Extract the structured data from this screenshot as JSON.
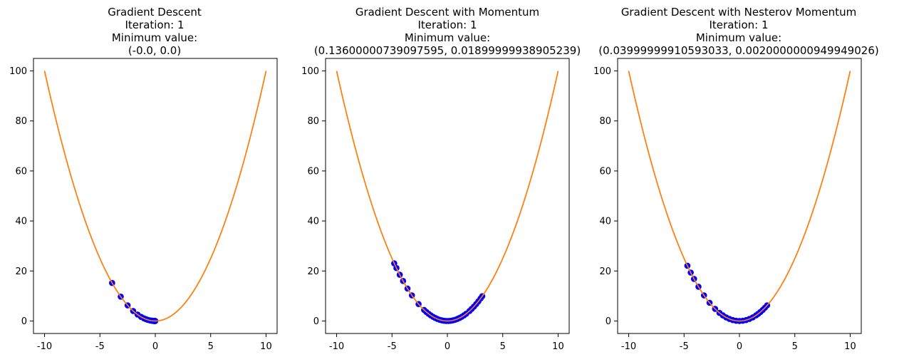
{
  "chart_data": [
    {
      "type": "line+scatter",
      "title_lines": [
        "Gradient Descent",
        "Iteration: 1",
        "Minimum value:",
        "(-0.0, 0.0)"
      ],
      "xlim": [
        -11,
        11
      ],
      "ylim": [
        -5,
        105
      ],
      "xticks": [
        "-10",
        "-5",
        "0",
        "5",
        "10"
      ],
      "yticks": [
        "0",
        "20",
        "40",
        "60",
        "80",
        "100"
      ],
      "curve": {
        "function": "y = x^2",
        "x_range": [
          -10,
          10
        ],
        "color": "#ff7f0e"
      },
      "points": {
        "color": "#0000ff",
        "x": [
          -3.9,
          -3.12,
          -2.5,
          -2.0,
          -1.6,
          -1.28,
          -1.02,
          -0.82,
          -0.66,
          -0.52,
          -0.42,
          -0.34,
          -0.27,
          -0.21,
          -0.17,
          -0.13,
          -0.1,
          -0.08,
          -0.06,
          -0.04,
          -0.02,
          0.0
        ]
      }
    },
    {
      "type": "line+scatter",
      "title_lines": [
        "Gradient Descent with Momentum",
        "Iteration: 1",
        "Minimum value:",
        "(0.13600000739097595, 0.01899999938905239)"
      ],
      "xlim": [
        -11,
        11
      ],
      "ylim": [
        -5,
        105
      ],
      "xticks": [
        "-10",
        "-5",
        "0",
        "5",
        "10"
      ],
      "yticks": [
        "0",
        "20",
        "40",
        "60",
        "80",
        "100"
      ],
      "curve": {
        "function": "y = x^2",
        "x_range": [
          -10,
          10
        ],
        "color": "#ff7f0e"
      },
      "points": {
        "color": "#0000ff",
        "x": [
          -4.8,
          -4.6,
          -4.3,
          -4.0,
          -3.6,
          -3.2,
          -2.6,
          -2.1,
          -1.9,
          -1.7,
          -1.5,
          -1.3,
          -1.1,
          -0.9,
          -0.7,
          -0.5,
          -0.3,
          -0.1,
          0.1,
          0.3,
          0.5,
          0.7,
          0.9,
          1.1,
          1.3,
          1.5,
          1.7,
          2.0,
          2.2,
          2.4,
          2.6,
          2.8,
          3.0,
          3.15
        ]
      }
    },
    {
      "type": "line+scatter",
      "title_lines": [
        "Gradient Descent with Nesterov Momentum",
        "Iteration: 1",
        "Minimum value:",
        "(0.03999999910593033, 0.0020000000949949026)"
      ],
      "xlim": [
        -11,
        11
      ],
      "ylim": [
        -5,
        105
      ],
      "xticks": [
        "-10",
        "-5",
        "0",
        "5",
        "10"
      ],
      "yticks": [
        "0",
        "20",
        "40",
        "60",
        "80",
        "100"
      ],
      "curve": {
        "function": "y = x^2",
        "x_range": [
          -10,
          10
        ],
        "color": "#ff7f0e"
      },
      "points": {
        "color": "#0000ff",
        "x": [
          -4.7,
          -4.4,
          -4.1,
          -3.7,
          -3.2,
          -2.7,
          -2.2,
          -1.8,
          -1.5,
          -1.2,
          -0.9,
          -0.6,
          -0.3,
          0.0,
          0.3,
          0.6,
          0.9,
          1.2,
          1.5,
          1.7,
          1.9,
          2.1,
          2.3,
          2.5
        ]
      }
    }
  ]
}
